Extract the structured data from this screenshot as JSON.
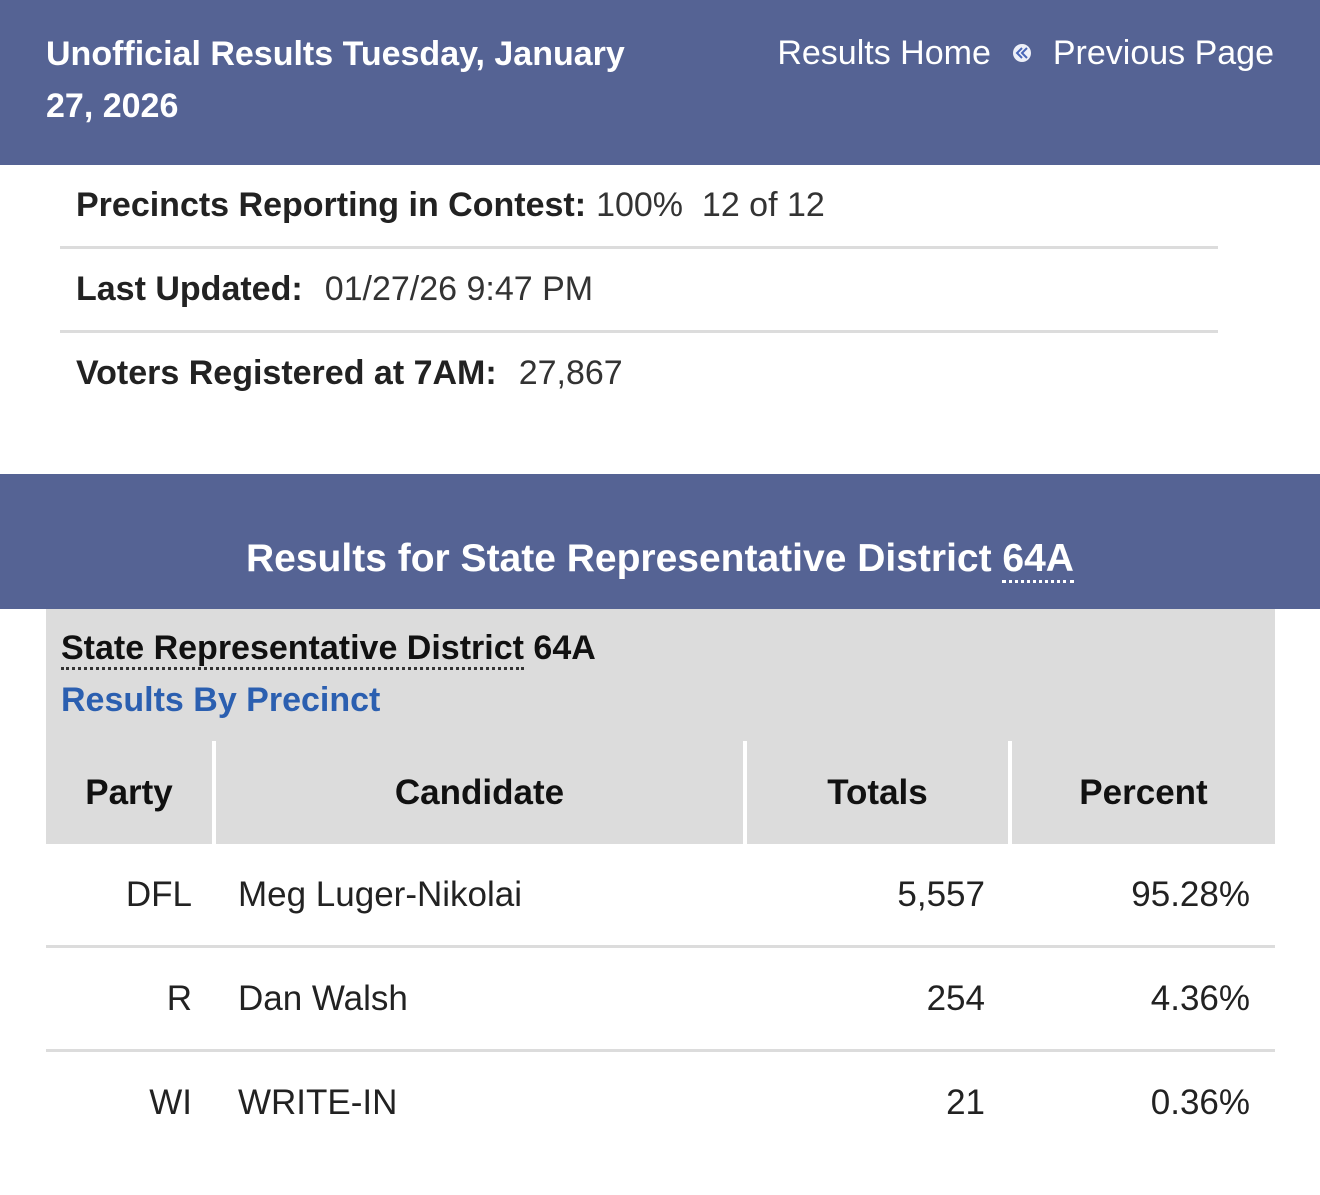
{
  "header": {
    "title": "Unofficial Results Tuesday, January 27, 2026",
    "nav_home": "Results Home",
    "nav_prev": "Previous Page"
  },
  "info": {
    "precincts_label": "Precincts Reporting in Contest:",
    "precincts_value": "100%  12 of 12",
    "updated_label": "Last Updated:",
    "updated_value": "01/27/26 9:47 PM",
    "voters_label": "Voters Registered at 7AM:",
    "voters_value": "27,867"
  },
  "results_bar": {
    "prefix": "Results for State Representative District ",
    "district": "64A"
  },
  "contest": {
    "name": "State Representative District",
    "district": "64A",
    "precinct_link": "Results By Precinct"
  },
  "table": {
    "headers": [
      "Party",
      "Candidate",
      "Totals",
      "Percent"
    ],
    "rows": [
      {
        "party": "DFL",
        "candidate": "Meg Luger-Nikolai",
        "total": "5,557",
        "percent": "95.28%"
      },
      {
        "party": "R",
        "candidate": "Dan Walsh",
        "total": "254",
        "percent": "4.36%"
      },
      {
        "party": "WI",
        "candidate": "WRITE-IN",
        "total": "21",
        "percent": "0.36%"
      }
    ]
  }
}
